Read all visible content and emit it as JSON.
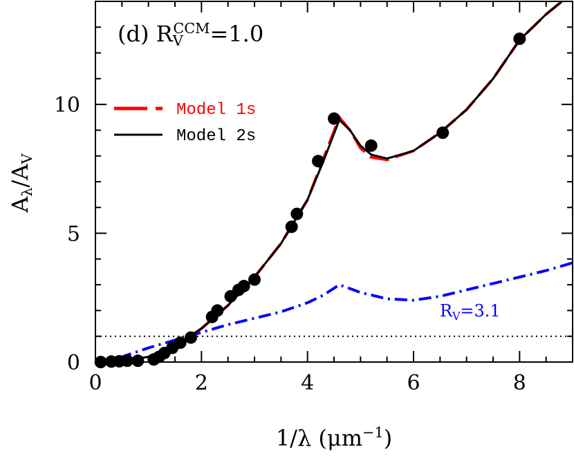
{
  "chart_data": {
    "type": "line",
    "xlabel": [
      {
        "text": "1/λ (μm"
      },
      {
        "text": "−1",
        "shift": "super"
      },
      {
        "text": ")"
      }
    ],
    "ylabel": [
      {
        "text": "A"
      },
      {
        "text": "λ",
        "shift": "sub"
      },
      {
        "text": "/A"
      },
      {
        "text": "V",
        "shift": "sub"
      }
    ],
    "annotation": [
      {
        "text": "(d) R"
      },
      {
        "text": "V",
        "shift": "sub"
      },
      {
        "text": "CCM",
        "shift": "super"
      },
      {
        "text": "=1.0"
      }
    ],
    "xlim": [
      0,
      9
    ],
    "ylim": [
      0,
      14
    ],
    "xticks": [
      0,
      2,
      4,
      6,
      8
    ],
    "yticks": [
      0,
      5,
      10
    ],
    "xminorticks": [
      0.5,
      1,
      1.5,
      2.5,
      3,
      3.5,
      4.5,
      5,
      5.5,
      6.5,
      7,
      7.5,
      8.5
    ],
    "yminorticks": [
      1,
      2,
      3,
      4,
      6,
      7,
      8,
      9,
      11,
      12,
      13
    ],
    "legend": "upper left",
    "series": [
      {
        "name": "Model 1s",
        "color": "#ff0000",
        "linestyle": "dashed",
        "x": [
          0,
          0.5,
          1,
          1.5,
          2,
          2.5,
          3,
          3.5,
          4,
          4.3,
          4.6,
          4.8,
          5,
          5.2,
          5.5,
          6,
          6.5,
          7,
          7.5,
          8,
          8.5,
          8.8
        ],
        "values": [
          0,
          0.05,
          0.2,
          0.6,
          1.3,
          2.2,
          3.3,
          4.6,
          6.3,
          7.9,
          9.5,
          9.0,
          8.3,
          7.95,
          7.85,
          8.2,
          8.9,
          9.8,
          11.0,
          12.5,
          13.5,
          14
        ]
      },
      {
        "name": "Model 2s",
        "color": "#000000",
        "linestyle": "solid",
        "x": [
          0,
          0.5,
          1,
          1.5,
          2,
          2.5,
          3,
          3.5,
          4,
          4.3,
          4.6,
          4.8,
          5,
          5.2,
          5.5,
          6,
          6.5,
          7,
          7.5,
          8,
          8.5,
          8.8
        ],
        "values": [
          0,
          0.05,
          0.2,
          0.6,
          1.3,
          2.2,
          3.3,
          4.6,
          6.3,
          7.8,
          9.4,
          9.0,
          8.4,
          8.05,
          7.9,
          8.2,
          8.9,
          9.8,
          11.0,
          12.5,
          13.5,
          14
        ]
      },
      {
        "color": "#0000ff",
        "linestyle": "dashdot",
        "label": [
          {
            "text": "R"
          },
          {
            "text": "V",
            "shift": "sub"
          },
          {
            "text": "=3.1"
          }
        ],
        "x": [
          0,
          0.5,
          1,
          1.5,
          2,
          2.5,
          3,
          3.5,
          4,
          4.3,
          4.6,
          5,
          5.5,
          6,
          6.5,
          7,
          7.5,
          8,
          8.5,
          9
        ],
        "values": [
          0,
          0.2,
          0.55,
          0.85,
          1.15,
          1.45,
          1.7,
          1.95,
          2.3,
          2.6,
          3.0,
          2.7,
          2.45,
          2.4,
          2.55,
          2.8,
          3.05,
          3.3,
          3.55,
          3.85
        ]
      }
    ],
    "points": {
      "color": "#000000",
      "x": [
        0.1,
        0.3,
        0.45,
        0.6,
        0.8,
        1.1,
        1.2,
        1.3,
        1.45,
        1.6,
        1.8,
        2.2,
        2.3,
        2.55,
        2.7,
        2.8,
        3.0,
        3.7,
        3.8,
        4.2,
        4.5,
        5.2,
        6.55,
        8.0
      ],
      "values": [
        0,
        0.02,
        0.03,
        0.05,
        0.05,
        0.1,
        0.2,
        0.35,
        0.55,
        0.75,
        0.95,
        1.75,
        2.0,
        2.55,
        2.8,
        2.95,
        3.2,
        5.25,
        5.75,
        7.8,
        9.45,
        8.4,
        8.9,
        12.55
      ]
    },
    "hline": {
      "value": 1,
      "linestyle": "dotted",
      "color": "#000000"
    }
  }
}
